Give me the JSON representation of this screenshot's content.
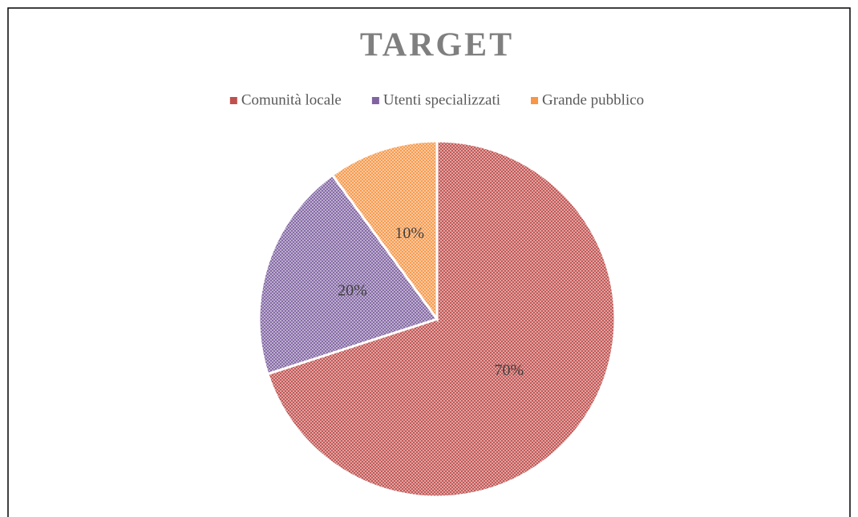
{
  "chart_data": {
    "type": "pie",
    "title": "TARGET",
    "categories": [
      "Comunità locale",
      "Utenti specializzati",
      "Grande pubblico"
    ],
    "values": [
      70,
      20,
      10
    ],
    "value_labels": [
      "70%",
      "20%",
      "10%"
    ],
    "colors": [
      "#c0504d",
      "#8064a2",
      "#f79646"
    ],
    "legend": "top"
  }
}
